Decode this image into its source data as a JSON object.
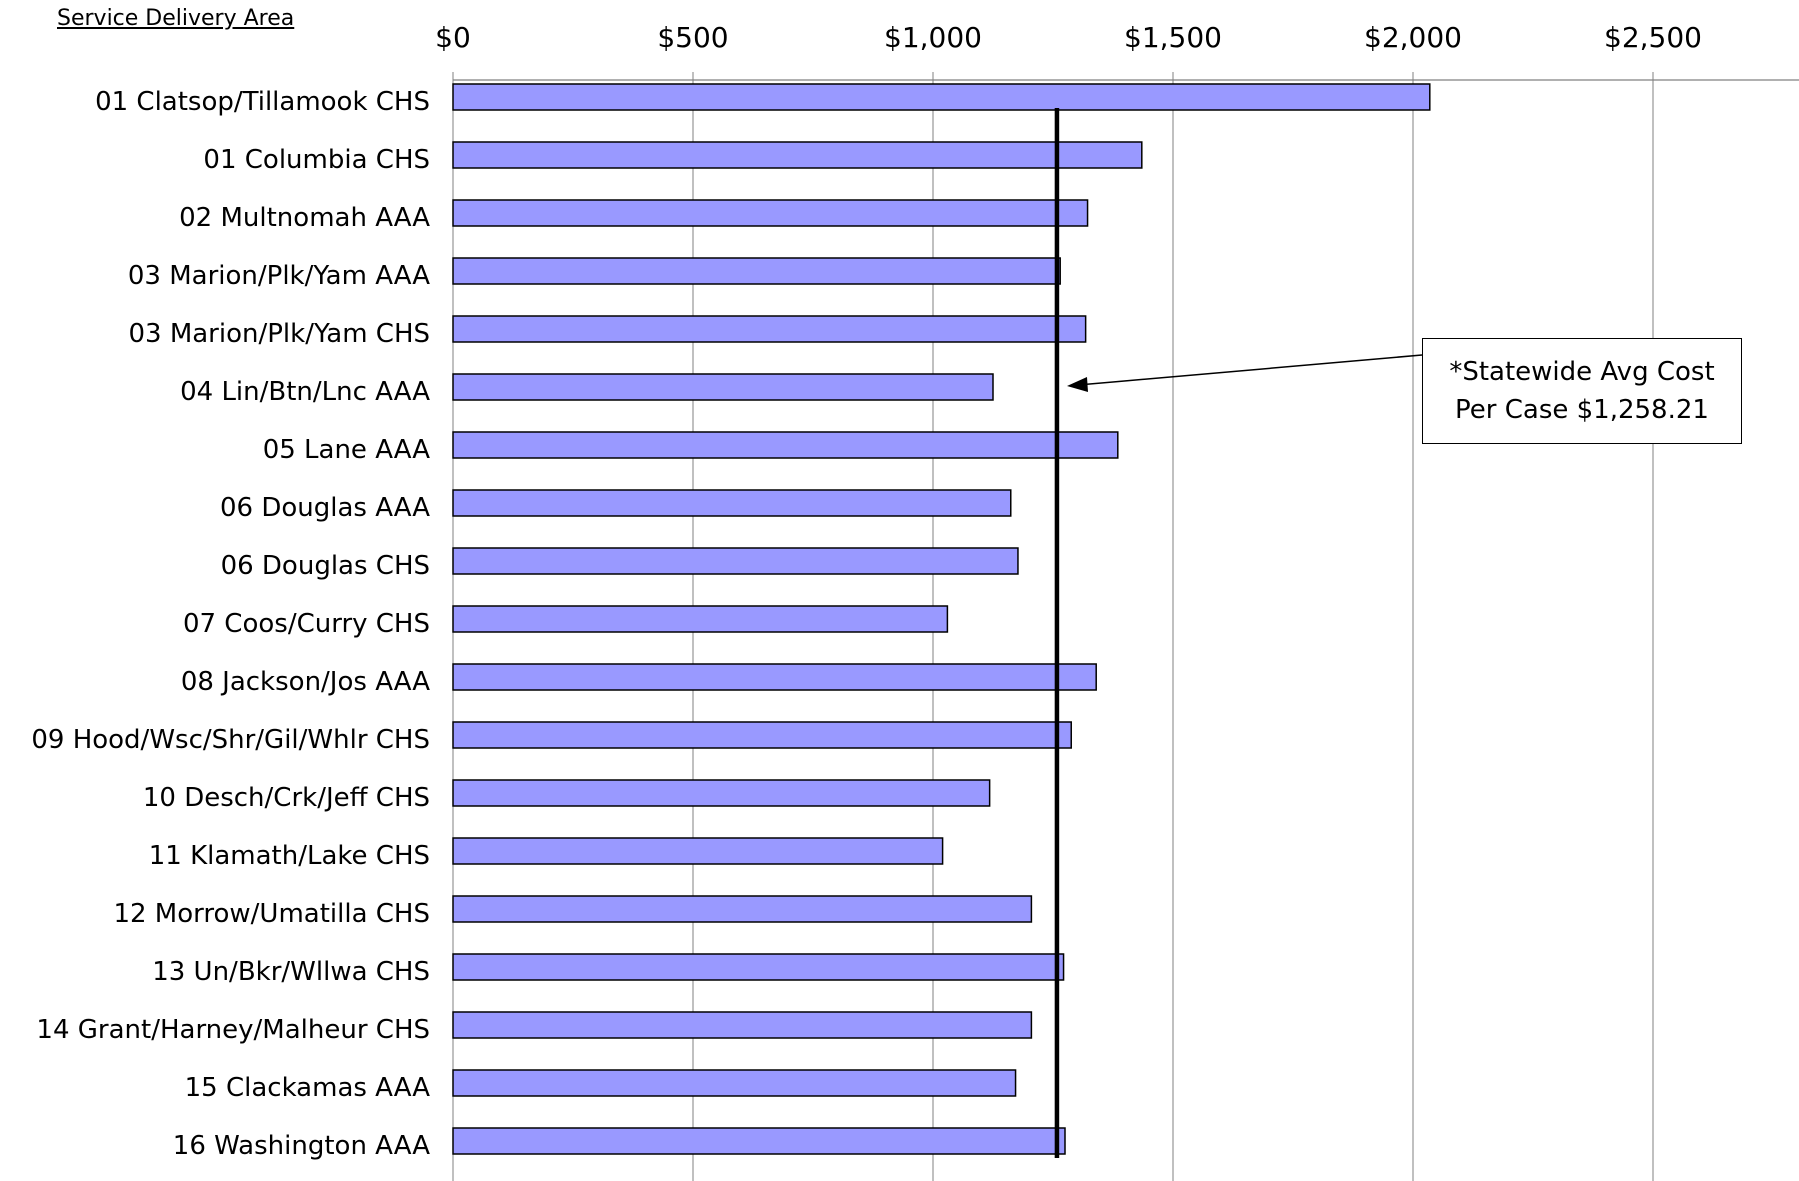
{
  "header": {
    "service_delivery_area_label": "Service Delivery Area"
  },
  "annotation": {
    "line1": "*Statewide Avg Cost",
    "line2": "Per Case $1,258.21"
  },
  "colors": {
    "bar_fill": "#9999ff",
    "bar_stroke": "#000000",
    "grid": "#808080",
    "average_line": "#000000"
  },
  "chart_data": {
    "type": "bar",
    "orientation": "horizontal",
    "title": "",
    "xlabel": "",
    "ylabel": "Service Delivery Area",
    "xlim": [
      0,
      2800
    ],
    "x_ticks": [
      0,
      500,
      1000,
      1500,
      2000,
      2500
    ],
    "x_tick_labels": [
      "$0",
      "$500",
      "$1,000",
      "$1,500",
      "$2,000",
      "$2,500"
    ],
    "grid": true,
    "legend": "none",
    "reference_line": {
      "value": 1258.21
    },
    "categories": [
      "01  Clatsop/Tillamook CHS",
      "01  Columbia CHS",
      "02  Multnomah AAA",
      "03  Marion/Plk/Yam AAA",
      "03  Marion/Plk/Yam CHS",
      "04  Lin/Btn/Lnc AAA",
      "05  Lane AAA",
      "06  Douglas AAA",
      "06  Douglas CHS",
      "07  Coos/Curry CHS",
      "08  Jackson/Jos AAA",
      "09  Hood/Wsc/Shr/Gil/Whlr CHS",
      "10  Desch/Crk/Jeff CHS",
      "11  Klamath/Lake CHS",
      "12  Morrow/Umatilla CHS",
      "13  Un/Bkr/Wllwa CHS",
      "14  Grant/Harney/Malheur CHS",
      "15  Clackamas AAA",
      "16  Washington AAA"
    ],
    "values": [
      2035,
      1435,
      1322,
      1265,
      1318,
      1125,
      1385,
      1162,
      1177,
      1030,
      1340,
      1288,
      1118,
      1020,
      1205,
      1272,
      1205,
      1172,
      1275
    ]
  }
}
